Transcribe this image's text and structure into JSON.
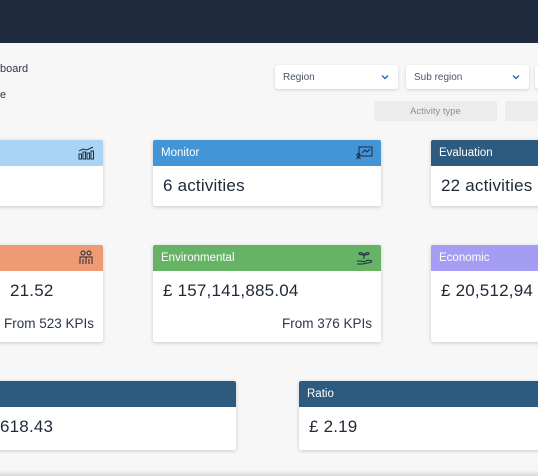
{
  "breadcrumb": {
    "line1": "board",
    "line2": "e"
  },
  "filters": {
    "region": "Region",
    "sub_region": "Sub region",
    "activity_type": "Activity type"
  },
  "colors": {
    "topbar": "#1e2a3e",
    "light_blue": "#a9d4f5",
    "monitor_blue": "#4295d6",
    "evaluation_navy": "#2c5b7f",
    "salmon": "#ee9a74",
    "environmental_green": "#66b365",
    "economic_purple": "#a59cf4",
    "ratio_navy": "#2c5b7f"
  },
  "cards": {
    "c1": {
      "title": "",
      "icon": "chart-icon",
      "value": ""
    },
    "monitor": {
      "title": "Monitor",
      "icon": "presentation-icon",
      "value": "6 activities"
    },
    "evaluation": {
      "title": "Evaluation",
      "value": "22 activities"
    },
    "social": {
      "title": "",
      "icon": "people-icon",
      "value": "21.52",
      "sub": "From 523 KPIs"
    },
    "environmental": {
      "title": "Environmental",
      "icon": "plant-hand-icon",
      "value": "£ 157,141,885.04",
      "sub": "From 376 KPIs"
    },
    "economic": {
      "title": "Economic",
      "value": "£ 20,512,94"
    },
    "total": {
      "title": "",
      "value": "618.43"
    },
    "ratio": {
      "title": "Ratio",
      "value": "£ 2.19"
    }
  }
}
